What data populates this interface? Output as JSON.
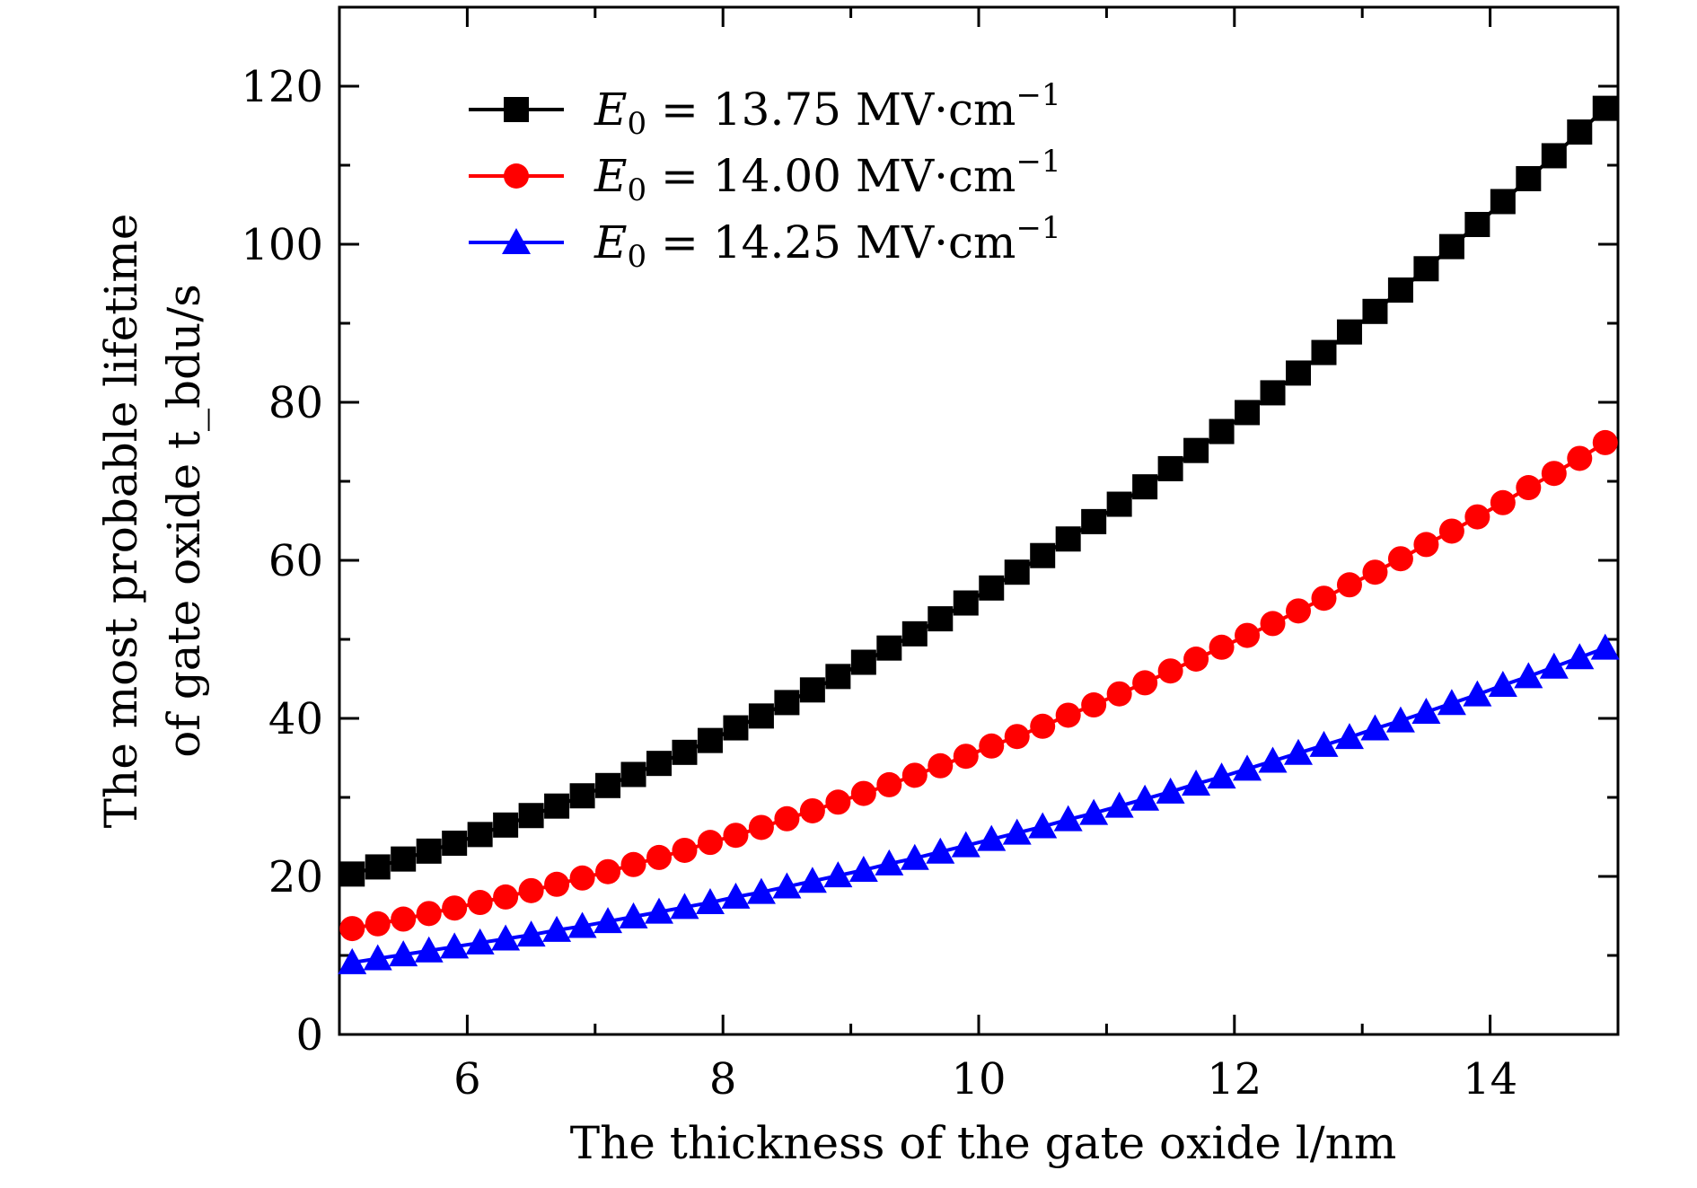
{
  "chart_data": {
    "type": "line",
    "xlabel": "The thickness of the gate oxide l/nm",
    "ylabel_line1": "The most probable lifetime",
    "ylabel_line2": "of gate oxide t_bdu/s",
    "xlim": [
      5,
      15
    ],
    "ylim": [
      0,
      130
    ],
    "xticks": [
      6,
      8,
      10,
      12,
      14
    ],
    "xtick_labels": [
      "6",
      "8",
      "10",
      "12",
      "14"
    ],
    "yticks": [
      0,
      20,
      40,
      60,
      80,
      100,
      120
    ],
    "ytick_labels": [
      "0",
      "20",
      "40",
      "60",
      "80",
      "100",
      "120"
    ],
    "grid": false,
    "legend_position": "top-left",
    "x_start": 5.1,
    "x_step": 0.2,
    "series": [
      {
        "name": "E0 = 13.75 MV·cm−1",
        "legend": {
          "prefix": "E",
          "sub": "0",
          "rest": " = 13.75 MV·cm",
          "sup": "−1"
        },
        "color": "#000000",
        "marker": "square",
        "values": [
          20.3,
          21.2,
          22.2,
          23.2,
          24.2,
          25.3,
          26.5,
          27.7,
          28.9,
          30.2,
          31.5,
          32.9,
          34.3,
          35.7,
          37.2,
          38.8,
          40.3,
          42.0,
          43.6,
          45.3,
          47.1,
          48.9,
          50.7,
          52.6,
          54.6,
          56.5,
          58.5,
          60.6,
          62.7,
          64.9,
          67.1,
          69.3,
          71.6,
          73.9,
          76.3,
          78.7,
          81.2,
          83.7,
          86.3,
          88.9,
          91.5,
          94.2,
          96.9,
          99.7,
          102.5,
          105.4,
          108.3,
          111.2,
          114.2,
          117.2
        ]
      },
      {
        "name": "E0 = 14.00 MV·cm−1",
        "legend": {
          "prefix": "E",
          "sub": "0",
          "rest": " = 14.00 MV·cm",
          "sup": "−1"
        },
        "color": "#ff0000",
        "marker": "circle",
        "values": [
          13.4,
          14.0,
          14.6,
          15.3,
          16.0,
          16.7,
          17.4,
          18.2,
          19.0,
          19.8,
          20.6,
          21.5,
          22.4,
          23.3,
          24.3,
          25.2,
          26.2,
          27.3,
          28.3,
          29.4,
          30.5,
          31.6,
          32.8,
          34.0,
          35.2,
          36.5,
          37.7,
          39.0,
          40.4,
          41.7,
          43.1,
          44.5,
          46.0,
          47.5,
          49.0,
          50.5,
          52.0,
          53.6,
          55.2,
          56.9,
          58.5,
          60.2,
          62.0,
          63.7,
          65.5,
          67.3,
          69.2,
          71.0,
          72.9,
          74.9
        ]
      },
      {
        "name": "E0 = 14.25 MV·cm−1",
        "legend": {
          "prefix": "E",
          "sub": "0",
          "rest": " = 14.25 MV·cm",
          "sup": "−1"
        },
        "color": "#0000ff",
        "marker": "triangle",
        "values": [
          9.1,
          9.6,
          10.1,
          10.6,
          11.1,
          11.6,
          12.1,
          12.6,
          13.2,
          13.7,
          14.3,
          14.9,
          15.5,
          16.1,
          16.7,
          17.4,
          18.0,
          18.7,
          19.4,
          20.1,
          20.8,
          21.6,
          22.3,
          23.1,
          23.9,
          24.7,
          25.5,
          26.3,
          27.2,
          28.0,
          28.9,
          29.8,
          30.7,
          31.7,
          32.6,
          33.6,
          34.6,
          35.6,
          36.6,
          37.6,
          38.7,
          39.7,
          40.8,
          41.9,
          43.0,
          44.2,
          45.3,
          46.5,
          47.7,
          48.9
        ]
      }
    ]
  }
}
